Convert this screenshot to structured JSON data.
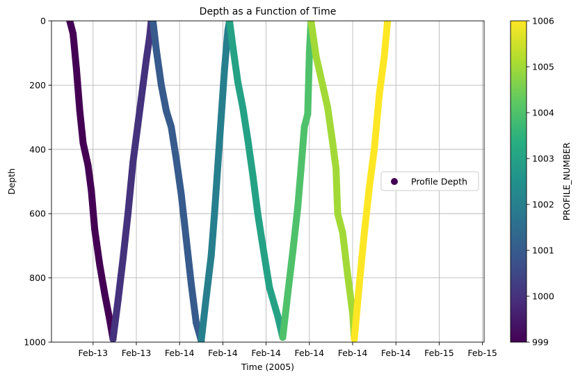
{
  "chart_data": {
    "type": "scatter",
    "title": "Depth as a Function of Time",
    "xlabel": "Time (2005)",
    "ylabel": "Depth",
    "x_unit": "days into February 2005",
    "xlim": [
      12.55,
      15.15
    ],
    "ylim": [
      1000,
      0
    ],
    "y_inverted": true,
    "x_ticks": [
      {
        "value": 12.8,
        "label": "Feb-13"
      },
      {
        "value": 13.06,
        "label": "Feb-13"
      },
      {
        "value": 13.32,
        "label": "Feb-14"
      },
      {
        "value": 13.58,
        "label": "Feb-14"
      },
      {
        "value": 13.84,
        "label": "Feb-14"
      },
      {
        "value": 14.1,
        "label": "Feb-14"
      },
      {
        "value": 14.36,
        "label": "Feb-14"
      },
      {
        "value": 14.62,
        "label": "Feb-14"
      },
      {
        "value": 14.88,
        "label": "Feb-15"
      },
      {
        "value": 15.14,
        "label": "Feb-15"
      }
    ],
    "y_ticks": [
      {
        "value": 0,
        "label": "0"
      },
      {
        "value": 200,
        "label": "200"
      },
      {
        "value": 400,
        "label": "400"
      },
      {
        "value": 600,
        "label": "600"
      },
      {
        "value": 800,
        "label": "800"
      },
      {
        "value": 1000,
        "label": "1000"
      }
    ],
    "grid": true,
    "legend": {
      "placement": "center-right",
      "entries": [
        "Profile Depth"
      ]
    },
    "colorbar": {
      "label": "PROFILE_NUMBER",
      "range": [
        999,
        1006
      ],
      "ticks": [
        "999",
        "1000",
        "1001",
        "1002",
        "1003",
        "1004",
        "1005",
        "1006"
      ],
      "colormap": "viridis"
    },
    "profiles": [
      {
        "profile": 999,
        "points": [
          [
            12.66,
            0
          ],
          [
            12.68,
            40
          ],
          [
            12.7,
            150
          ],
          [
            12.72,
            280
          ],
          [
            12.74,
            380
          ],
          [
            12.77,
            450
          ],
          [
            12.79,
            530
          ],
          [
            12.81,
            650
          ],
          [
            12.84,
            760
          ],
          [
            12.87,
            850
          ],
          [
            12.9,
            930
          ],
          [
            12.92,
            990
          ]
        ]
      },
      {
        "profile": 1000,
        "points": [
          [
            12.92,
            990
          ],
          [
            12.95,
            870
          ],
          [
            12.98,
            740
          ],
          [
            13.01,
            600
          ],
          [
            13.04,
            440
          ],
          [
            13.07,
            320
          ],
          [
            13.1,
            200
          ],
          [
            13.12,
            120
          ],
          [
            13.14,
            50
          ],
          [
            13.15,
            0
          ]
        ]
      },
      {
        "profile": 1001,
        "points": [
          [
            13.16,
            0
          ],
          [
            13.18,
            90
          ],
          [
            13.21,
            200
          ],
          [
            13.24,
            280
          ],
          [
            13.27,
            330
          ],
          [
            13.3,
            430
          ],
          [
            13.33,
            540
          ],
          [
            13.36,
            680
          ],
          [
            13.39,
            820
          ],
          [
            13.42,
            940
          ],
          [
            13.45,
            995
          ]
        ]
      },
      {
        "profile": 1002,
        "points": [
          [
            13.45,
            995
          ],
          [
            13.48,
            860
          ],
          [
            13.51,
            730
          ],
          [
            13.53,
            600
          ],
          [
            13.55,
            450
          ],
          [
            13.57,
            300
          ],
          [
            13.59,
            150
          ],
          [
            13.61,
            30
          ],
          [
            13.62,
            0
          ]
        ]
      },
      {
        "profile": 1003,
        "points": [
          [
            13.62,
            0
          ],
          [
            13.64,
            80
          ],
          [
            13.67,
            190
          ],
          [
            13.7,
            270
          ],
          [
            13.73,
            370
          ],
          [
            13.76,
            480
          ],
          [
            13.79,
            600
          ],
          [
            13.82,
            700
          ],
          [
            13.86,
            830
          ],
          [
            13.91,
            920
          ],
          [
            13.94,
            985
          ]
        ]
      },
      {
        "profile": 1004,
        "points": [
          [
            13.94,
            985
          ],
          [
            13.97,
            850
          ],
          [
            14.0,
            720
          ],
          [
            14.03,
            580
          ],
          [
            14.05,
            460
          ],
          [
            14.07,
            330
          ],
          [
            14.09,
            290
          ],
          [
            14.1,
            100
          ],
          [
            14.11,
            0
          ]
        ]
      },
      {
        "profile": 1005,
        "points": [
          [
            14.11,
            0
          ],
          [
            14.14,
            110
          ],
          [
            14.18,
            200
          ],
          [
            14.21,
            270
          ],
          [
            14.24,
            380
          ],
          [
            14.26,
            460
          ],
          [
            14.27,
            600
          ],
          [
            14.3,
            660
          ],
          [
            14.33,
            790
          ],
          [
            14.36,
            910
          ],
          [
            14.37,
            990
          ]
        ]
      },
      {
        "profile": 1006,
        "points": [
          [
            14.37,
            990
          ],
          [
            14.4,
            820
          ],
          [
            14.43,
            660
          ],
          [
            14.46,
            520
          ],
          [
            14.49,
            400
          ],
          [
            14.52,
            230
          ],
          [
            14.55,
            110
          ],
          [
            14.57,
            0
          ]
        ]
      }
    ]
  }
}
